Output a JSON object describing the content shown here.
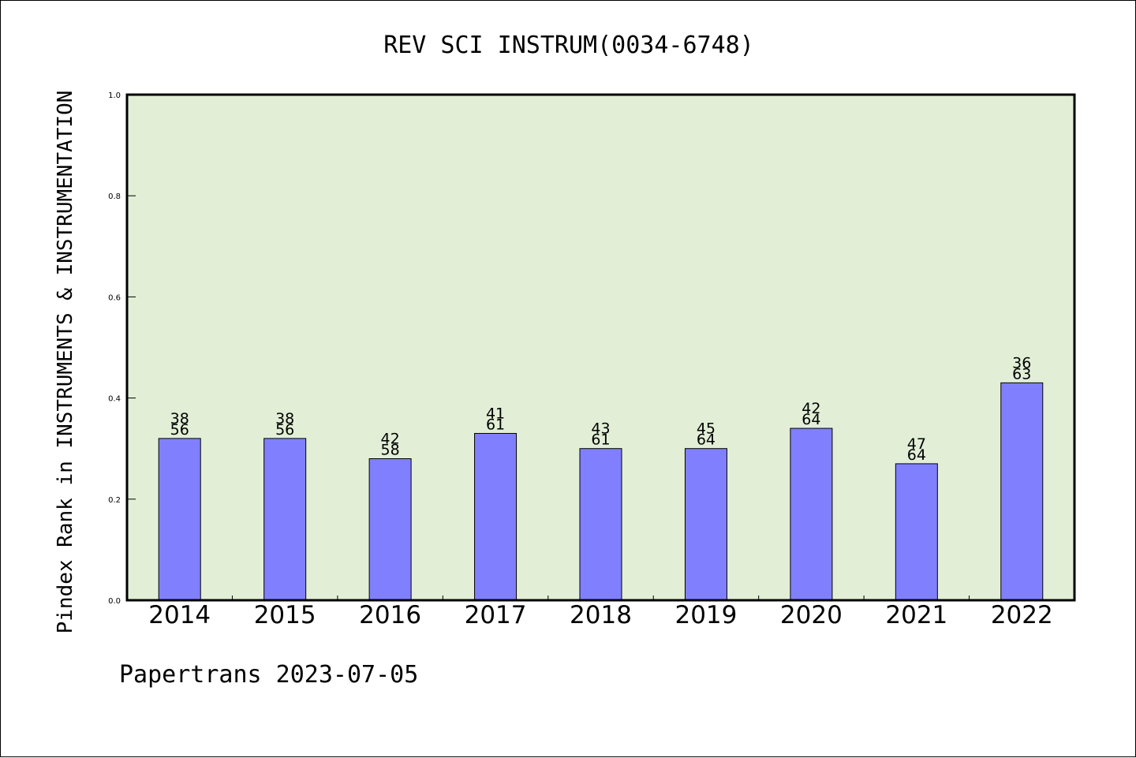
{
  "chart_data": {
    "type": "bar",
    "title": "REV SCI INSTRUM(0034-6748)",
    "ylabel": "Pindex Rank in INSTRUMENTS & INSTRUMENTATION",
    "xlabel": "",
    "categories": [
      "2014",
      "2015",
      "2016",
      "2017",
      "2018",
      "2019",
      "2020",
      "2021",
      "2022"
    ],
    "values": [
      0.32,
      0.32,
      0.28,
      0.33,
      0.3,
      0.3,
      0.34,
      0.27,
      0.43
    ],
    "label_top": [
      "38",
      "38",
      "42",
      "41",
      "43",
      "45",
      "42",
      "47",
      "36"
    ],
    "label_bottom": [
      "56",
      "56",
      "58",
      "61",
      "61",
      "64",
      "64",
      "64",
      "63"
    ],
    "ylim": [
      0,
      1.0
    ],
    "yticks": [
      "0.0",
      "0.2",
      "0.4",
      "0.6",
      "0.8",
      "1.0"
    ],
    "grid": false,
    "colors": {
      "plot_background": "#e2efd6",
      "bar": "#8080ff",
      "axis": "#000000"
    }
  },
  "footer": {
    "text": "Papertrans 2023-07-05"
  }
}
